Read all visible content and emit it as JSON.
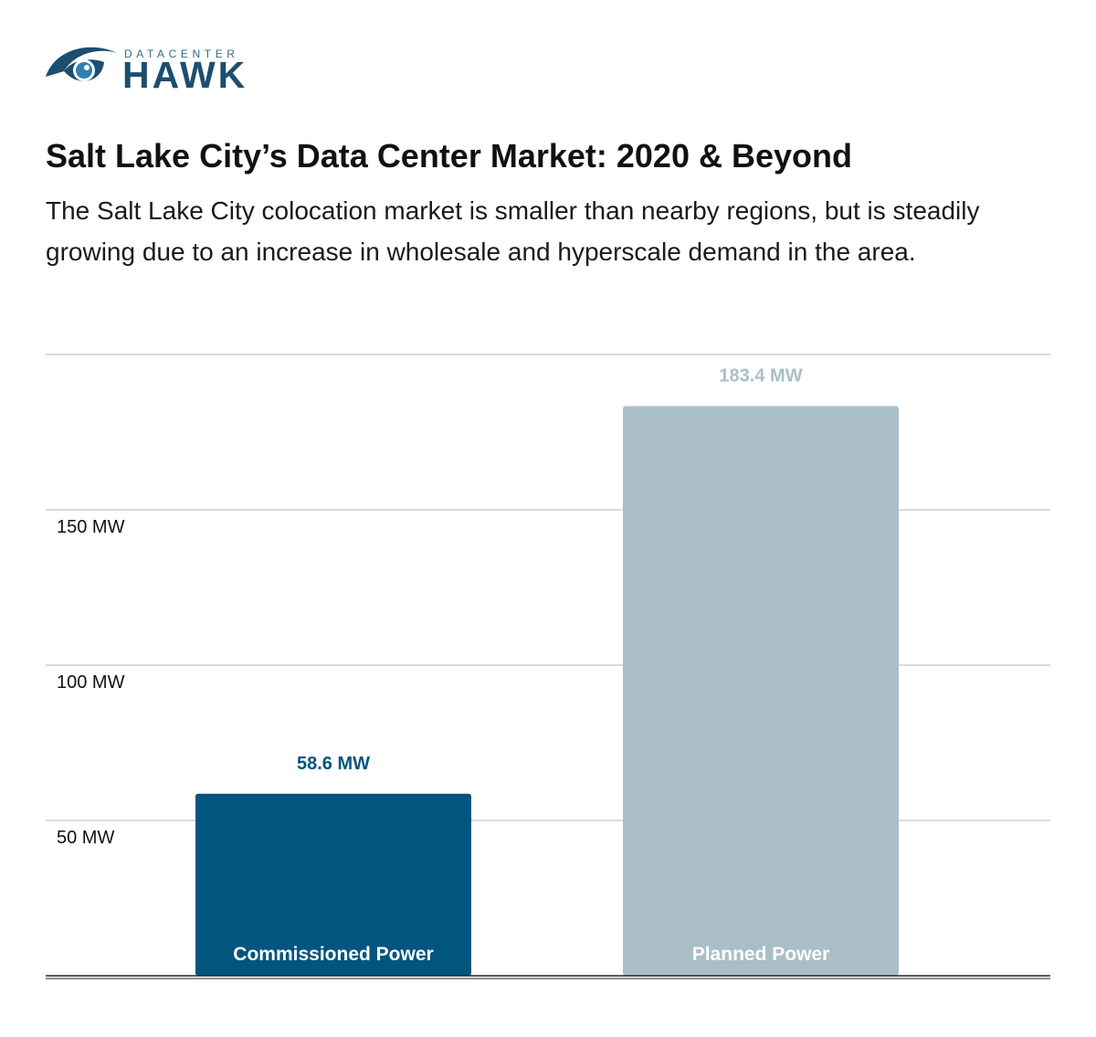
{
  "logo": {
    "small_text": "DATACENTER",
    "main_text": "HAWK",
    "icon": "eye-icon"
  },
  "title": "Salt Lake City’s Data Center Market: 2020 & Beyond",
  "subtitle": "The Salt Lake City colocation market is smaller than nearby regions, but is steadily growing due to an increase in wholesale and hyperscale demand in the area.",
  "chart_data": {
    "type": "bar",
    "categories": [
      "Commissioned Power",
      "Planned Power"
    ],
    "values": [
      58.6,
      183.4
    ],
    "value_labels": [
      "58.6 MW",
      "183.4 MW"
    ],
    "colors": [
      "#02557f",
      "#aabec7"
    ],
    "yticks": [
      50,
      100,
      150
    ],
    "ytick_labels": [
      "50 MW",
      "100 MW",
      "150 MW"
    ],
    "ylim": [
      0,
      200
    ],
    "grid": true,
    "legend": "none"
  }
}
